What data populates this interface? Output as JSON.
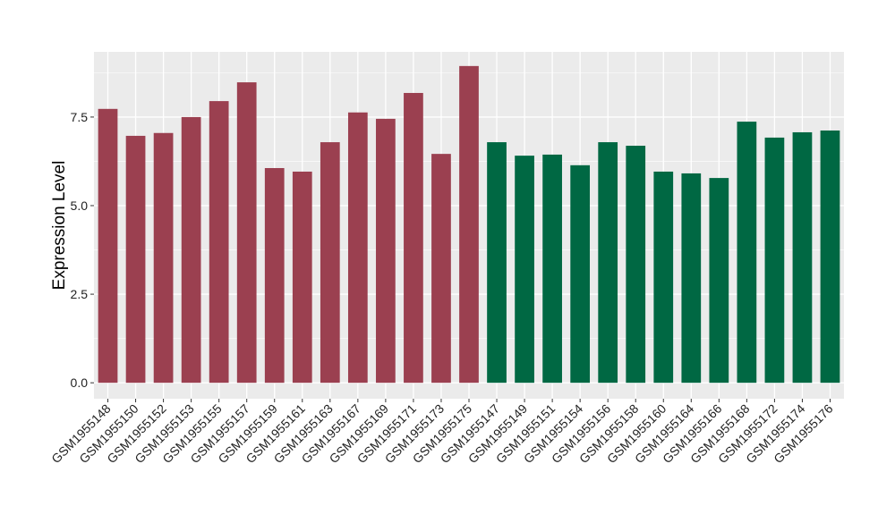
{
  "chart_data": {
    "type": "bar",
    "title": "",
    "xlabel": "",
    "ylabel": "Expression Level",
    "ylim": [
      -0.45,
      9.34
    ],
    "yticks": [
      "0.0",
      "2.5",
      "5.0",
      "7.5"
    ],
    "ytick_values": [
      0,
      2.5,
      5,
      7.5
    ],
    "grid": true,
    "colors": {
      "group1": "#9b4050",
      "group2": "#006843",
      "panel": "#ebebeb",
      "grid": "#ffffff"
    },
    "categories": [
      "GSM1955148",
      "GSM1955150",
      "GSM1955152",
      "GSM1955153",
      "GSM1955155",
      "GSM1955157",
      "GSM1955159",
      "GSM1955161",
      "GSM1955163",
      "GSM1955167",
      "GSM1955169",
      "GSM1955171",
      "GSM1955173",
      "GSM1955175",
      "GSM1955147",
      "GSM1955149",
      "GSM1955151",
      "GSM1955154",
      "GSM1955156",
      "GSM1955158",
      "GSM1955160",
      "GSM1955164",
      "GSM1955166",
      "GSM1955168",
      "GSM1955172",
      "GSM1955174",
      "GSM1955176"
    ],
    "values": [
      7.73,
      6.97,
      7.05,
      7.5,
      7.95,
      8.48,
      6.06,
      5.96,
      6.79,
      7.63,
      7.45,
      8.18,
      6.46,
      8.94,
      6.79,
      6.41,
      6.44,
      6.14,
      6.79,
      6.69,
      5.96,
      5.91,
      5.78,
      7.37,
      6.92,
      7.07,
      7.12
    ],
    "groups": [
      1,
      1,
      1,
      1,
      1,
      1,
      1,
      1,
      1,
      1,
      1,
      1,
      1,
      1,
      2,
      2,
      2,
      2,
      2,
      2,
      2,
      2,
      2,
      2,
      2,
      2,
      2
    ]
  }
}
